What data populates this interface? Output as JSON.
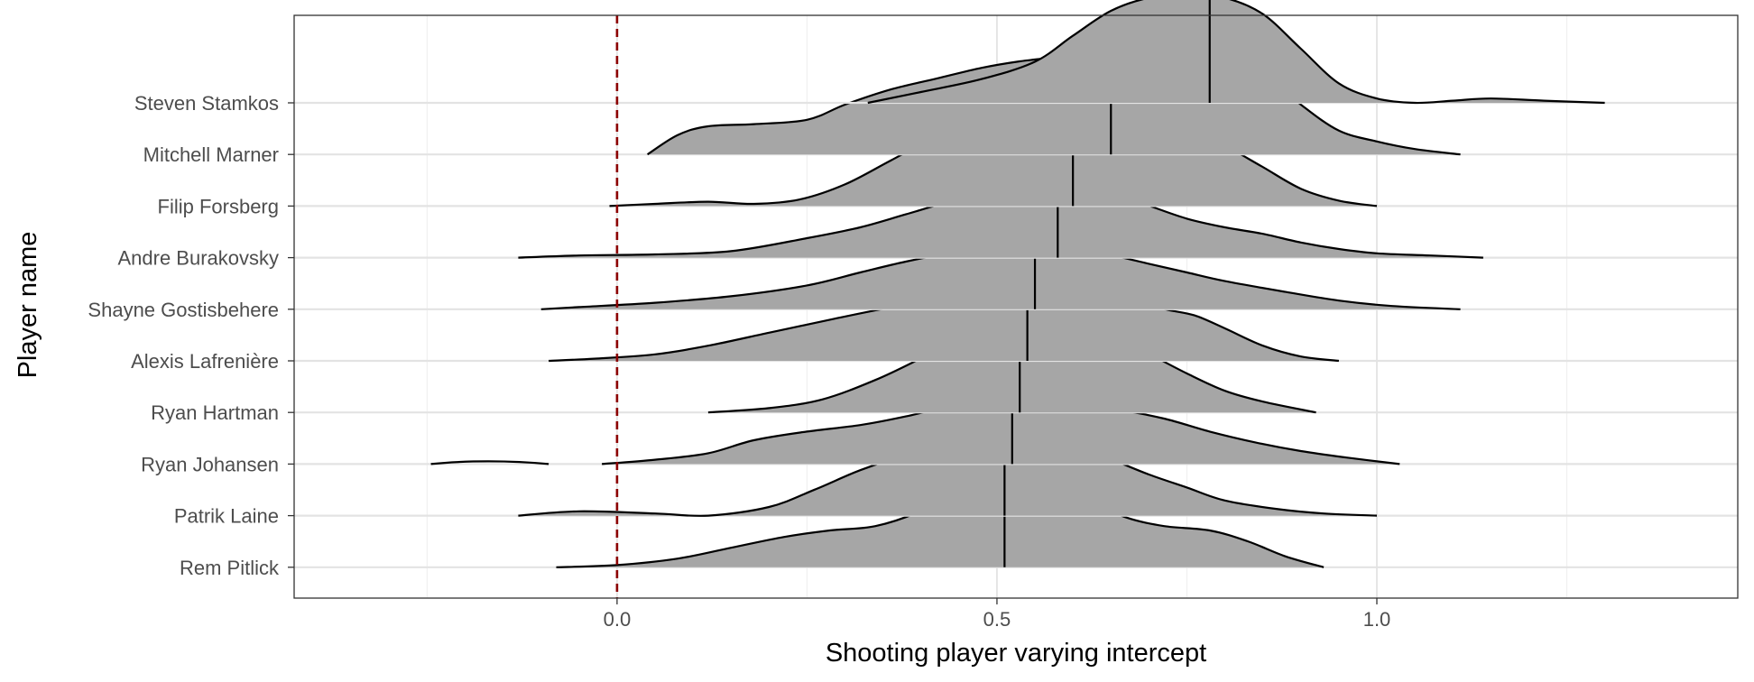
{
  "chart_data": {
    "type": "ridgeline",
    "xlabel": "Shooting player varying intercept",
    "ylabel": "Player name",
    "xlim": [
      -0.425,
      1.475
    ],
    "x_ticks": [
      0.0,
      0.5,
      1.0
    ],
    "x_tick_labels": [
      "0.0",
      "0.5",
      "1.0"
    ],
    "minor_x_ticks": [
      -0.25,
      0.25,
      0.75,
      1.25
    ],
    "grid": true,
    "reference_line": {
      "x": 0.0,
      "style": "dashed",
      "color": "#8b0000"
    },
    "fill_color": "#a6a6a6",
    "players": [
      {
        "name": "Steven Stamkos",
        "median": 0.78,
        "density": [
          [
            0.33,
            0
          ],
          [
            0.4,
            0.1
          ],
          [
            0.48,
            0.22
          ],
          [
            0.55,
            0.38
          ],
          [
            0.6,
            0.62
          ],
          [
            0.65,
            0.85
          ],
          [
            0.7,
            0.97
          ],
          [
            0.75,
            1.0
          ],
          [
            0.8,
            0.97
          ],
          [
            0.85,
            0.82
          ],
          [
            0.9,
            0.5
          ],
          [
            0.95,
            0.18
          ],
          [
            1.0,
            0.04
          ],
          [
            1.05,
            0.0
          ],
          [
            1.1,
            0.02
          ],
          [
            1.15,
            0.04
          ],
          [
            1.22,
            0.02
          ],
          [
            1.3,
            0.0
          ]
        ]
      },
      {
        "name": "Mitchell Marner",
        "median": 0.65,
        "density": [
          [
            0.04,
            0
          ],
          [
            0.08,
            0.18
          ],
          [
            0.12,
            0.26
          ],
          [
            0.18,
            0.28
          ],
          [
            0.25,
            0.32
          ],
          [
            0.3,
            0.46
          ],
          [
            0.36,
            0.6
          ],
          [
            0.42,
            0.7
          ],
          [
            0.48,
            0.8
          ],
          [
            0.53,
            0.86
          ],
          [
            0.58,
            0.9
          ],
          [
            0.62,
            0.94
          ],
          [
            0.66,
            1.0
          ],
          [
            0.7,
            1.08
          ],
          [
            0.74,
            1.1
          ],
          [
            0.78,
            1.06
          ],
          [
            0.82,
            0.92
          ],
          [
            0.86,
            0.7
          ],
          [
            0.9,
            0.46
          ],
          [
            0.95,
            0.22
          ],
          [
            1.0,
            0.12
          ],
          [
            1.05,
            0.05
          ],
          [
            1.11,
            0.0
          ]
        ]
      },
      {
        "name": "Filip Forsberg",
        "median": 0.6,
        "density": [
          [
            -0.01,
            0
          ],
          [
            0.05,
            0.02
          ],
          [
            0.12,
            0.04
          ],
          [
            0.18,
            0.02
          ],
          [
            0.24,
            0.06
          ],
          [
            0.3,
            0.2
          ],
          [
            0.36,
            0.42
          ],
          [
            0.42,
            0.64
          ],
          [
            0.48,
            0.8
          ],
          [
            0.54,
            0.9
          ],
          [
            0.58,
            0.94
          ],
          [
            0.62,
            0.94
          ],
          [
            0.66,
            0.92
          ],
          [
            0.7,
            0.86
          ],
          [
            0.75,
            0.74
          ],
          [
            0.8,
            0.56
          ],
          [
            0.85,
            0.36
          ],
          [
            0.9,
            0.16
          ],
          [
            0.95,
            0.05
          ],
          [
            1.0,
            0.0
          ]
        ]
      },
      {
        "name": "Andre Burakovsky",
        "median": 0.58,
        "density": [
          [
            -0.13,
            0
          ],
          [
            -0.05,
            0.02
          ],
          [
            0.05,
            0.03
          ],
          [
            0.15,
            0.06
          ],
          [
            0.25,
            0.18
          ],
          [
            0.32,
            0.28
          ],
          [
            0.38,
            0.4
          ],
          [
            0.44,
            0.52
          ],
          [
            0.5,
            0.6
          ],
          [
            0.55,
            0.64
          ],
          [
            0.6,
            0.65
          ],
          [
            0.65,
            0.6
          ],
          [
            0.7,
            0.48
          ],
          [
            0.75,
            0.36
          ],
          [
            0.8,
            0.28
          ],
          [
            0.85,
            0.22
          ],
          [
            0.9,
            0.14
          ],
          [
            0.95,
            0.08
          ],
          [
            1.0,
            0.04
          ],
          [
            1.07,
            0.02
          ],
          [
            1.14,
            0.0
          ]
        ]
      },
      {
        "name": "Shayne Gostisbehere",
        "median": 0.55,
        "density": [
          [
            -0.1,
            0
          ],
          [
            -0.05,
            0.02
          ],
          [
            0.05,
            0.06
          ],
          [
            0.15,
            0.12
          ],
          [
            0.25,
            0.22
          ],
          [
            0.32,
            0.34
          ],
          [
            0.38,
            0.44
          ],
          [
            0.44,
            0.52
          ],
          [
            0.5,
            0.56
          ],
          [
            0.55,
            0.58
          ],
          [
            0.6,
            0.56
          ],
          [
            0.65,
            0.5
          ],
          [
            0.7,
            0.42
          ],
          [
            0.75,
            0.34
          ],
          [
            0.8,
            0.26
          ],
          [
            0.88,
            0.16
          ],
          [
            0.95,
            0.08
          ],
          [
            1.02,
            0.03
          ],
          [
            1.11,
            0.0
          ]
        ]
      },
      {
        "name": "Alexis Lafrenière",
        "median": 0.54,
        "density": [
          [
            -0.09,
            0
          ],
          [
            -0.03,
            0.02
          ],
          [
            0.05,
            0.06
          ],
          [
            0.12,
            0.14
          ],
          [
            0.2,
            0.26
          ],
          [
            0.28,
            0.38
          ],
          [
            0.35,
            0.48
          ],
          [
            0.42,
            0.56
          ],
          [
            0.48,
            0.62
          ],
          [
            0.54,
            0.68
          ],
          [
            0.58,
            0.7
          ],
          [
            0.63,
            0.66
          ],
          [
            0.68,
            0.58
          ],
          [
            0.72,
            0.48
          ],
          [
            0.76,
            0.42
          ],
          [
            0.8,
            0.3
          ],
          [
            0.85,
            0.14
          ],
          [
            0.9,
            0.04
          ],
          [
            0.95,
            0.0
          ]
        ]
      },
      {
        "name": "Ryan Hartman",
        "median": 0.53,
        "density": [
          [
            0.12,
            0
          ],
          [
            0.2,
            0.04
          ],
          [
            0.27,
            0.12
          ],
          [
            0.34,
            0.3
          ],
          [
            0.4,
            0.5
          ],
          [
            0.45,
            0.68
          ],
          [
            0.5,
            0.78
          ],
          [
            0.55,
            0.8
          ],
          [
            0.6,
            0.78
          ],
          [
            0.65,
            0.7
          ],
          [
            0.7,
            0.54
          ],
          [
            0.75,
            0.36
          ],
          [
            0.8,
            0.2
          ],
          [
            0.85,
            0.1
          ],
          [
            0.92,
            0.0
          ]
        ]
      },
      {
        "name": "Ryan Johansen",
        "median": 0.52,
        "density": [
          [
            -0.02,
            0
          ],
          [
            0.05,
            0.04
          ],
          [
            0.12,
            0.1
          ],
          [
            0.18,
            0.22
          ],
          [
            0.25,
            0.3
          ],
          [
            0.32,
            0.36
          ],
          [
            0.38,
            0.44
          ],
          [
            0.44,
            0.54
          ],
          [
            0.49,
            0.6
          ],
          [
            0.54,
            0.58
          ],
          [
            0.6,
            0.54
          ],
          [
            0.66,
            0.5
          ],
          [
            0.72,
            0.42
          ],
          [
            0.78,
            0.3
          ],
          [
            0.84,
            0.2
          ],
          [
            0.9,
            0.12
          ],
          [
            0.96,
            0.06
          ],
          [
            1.03,
            0.0
          ]
        ]
      },
      {
        "name": "Patrik Laine",
        "median": 0.51,
        "density": [
          [
            -0.13,
            0
          ],
          [
            -0.05,
            0.04
          ],
          [
            0.05,
            0.02
          ],
          [
            0.12,
            0.0
          ],
          [
            0.2,
            0.08
          ],
          [
            0.26,
            0.24
          ],
          [
            0.32,
            0.42
          ],
          [
            0.38,
            0.56
          ],
          [
            0.44,
            0.66
          ],
          [
            0.49,
            0.72
          ],
          [
            0.54,
            0.72
          ],
          [
            0.6,
            0.64
          ],
          [
            0.65,
            0.52
          ],
          [
            0.7,
            0.38
          ],
          [
            0.75,
            0.26
          ],
          [
            0.8,
            0.14
          ],
          [
            0.87,
            0.06
          ],
          [
            0.93,
            0.02
          ],
          [
            1.0,
            0.0
          ]
        ]
      },
      {
        "name": "Rem Pitlick",
        "median": 0.51,
        "density": [
          [
            -0.08,
            0
          ],
          [
            0.0,
            0.02
          ],
          [
            0.08,
            0.08
          ],
          [
            0.15,
            0.18
          ],
          [
            0.22,
            0.28
          ],
          [
            0.28,
            0.34
          ],
          [
            0.34,
            0.38
          ],
          [
            0.4,
            0.52
          ],
          [
            0.45,
            0.72
          ],
          [
            0.49,
            0.82
          ],
          [
            0.53,
            0.84
          ],
          [
            0.57,
            0.78
          ],
          [
            0.62,
            0.62
          ],
          [
            0.67,
            0.46
          ],
          [
            0.72,
            0.38
          ],
          [
            0.78,
            0.34
          ],
          [
            0.83,
            0.24
          ],
          [
            0.88,
            0.1
          ],
          [
            0.93,
            0.0
          ]
        ]
      }
    ]
  }
}
